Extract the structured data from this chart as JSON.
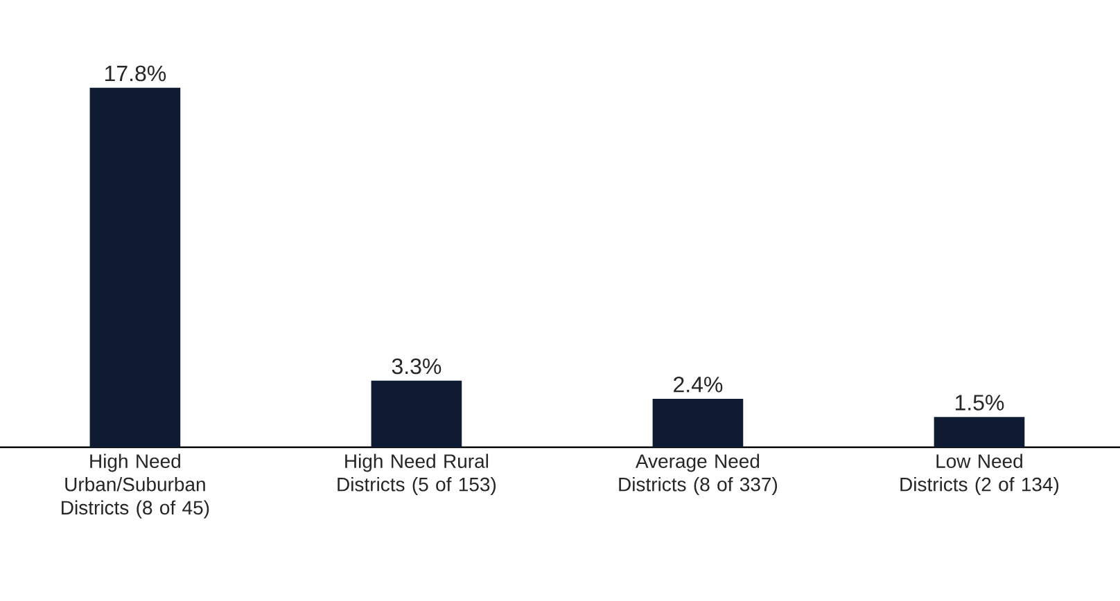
{
  "chart_data": {
    "type": "bar",
    "categories": [
      "High Need Urban/Suburban Districts (8 of 45)",
      "High Need Rural Districts (5 of 153)",
      "Average Need Districts (8 of 337)",
      "Low Need Districts (2 of 134)"
    ],
    "values": [
      17.8,
      3.3,
      2.4,
      1.5
    ],
    "value_labels": [
      "17.8%",
      "3.3%",
      "2.4%",
      "1.5%"
    ],
    "color": "#0f1a33"
  }
}
